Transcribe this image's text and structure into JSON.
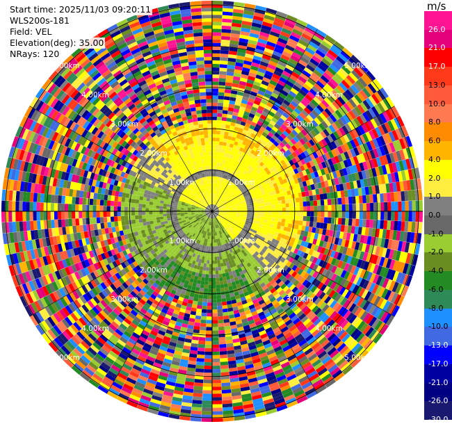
{
  "info": {
    "start_time": "Start time: 2025/11/03 09:20:11",
    "instrument": "WLS200s-181",
    "field": "Field: VEL",
    "elevation": "Elevation(deg): 35.00",
    "nrays": "NRays: 120"
  },
  "colorbar": {
    "unit": "m/s",
    "levels": [
      {
        "label": "26.0",
        "color": "#ff1493"
      },
      {
        "label": "21.0",
        "color": "#e4007a"
      },
      {
        "label": "17.0",
        "color": "#ff0000"
      },
      {
        "label": "13.0",
        "color": "#ff3a1a"
      },
      {
        "label": "10.0",
        "color": "#ff5a3a"
      },
      {
        "label": "8.0",
        "color": "#ff7a50"
      },
      {
        "label": "6.0",
        "color": "#ff8c00"
      },
      {
        "label": "4.0",
        "color": "#ffb400"
      },
      {
        "label": "2.0",
        "color": "#ffff00"
      },
      {
        "label": "1.0",
        "color": "#ffee40"
      },
      {
        "label": "0.0",
        "color": "#808080"
      },
      {
        "label": "-1.0",
        "color": "#696969"
      },
      {
        "label": "-2.0",
        "color": "#9acd32"
      },
      {
        "label": "-4.0",
        "color": "#6b8e23"
      },
      {
        "label": "-6.0",
        "color": "#228b22"
      },
      {
        "label": "-8.0",
        "color": "#2e8b57"
      },
      {
        "label": "-10.0",
        "color": "#1e90ff"
      },
      {
        "label": "-13.0",
        "color": "#4169e1"
      },
      {
        "label": "-17.0",
        "color": "#0000ff"
      },
      {
        "label": "-21.0",
        "color": "#0000a0"
      },
      {
        "label": "-26.0",
        "color": "#000080"
      },
      {
        "label": "-30.0",
        "color": "#191970"
      }
    ]
  },
  "chart_data": {
    "type": "heatmap",
    "projection": "polar (PPI scan)",
    "field": "VEL",
    "unit": "m/s",
    "nrays": 120,
    "elevation_deg": 35.0,
    "range_ring_labels": [
      "1.00km",
      "2.00km",
      "3.00km",
      "4.00km",
      "5.00km"
    ],
    "range_rings_km": [
      1,
      2,
      3,
      4,
      5
    ],
    "description_of_field": "Inner region (<~2 km) coherent: yellow (+1 to +4 m/s) on the north/east side and centre, olive/green (-2 to -6 m/s) on the west and south side, grey (near 0) around the inner ring; beyond ~2.2 km the field is noisy with all color classes present.",
    "spokes_deg": [
      0,
      30,
      60,
      90,
      120,
      150,
      180,
      210,
      240,
      270,
      300,
      330
    ],
    "color_levels": [
      26,
      21,
      17,
      13,
      10,
      8,
      6,
      4,
      2,
      1,
      0,
      -1,
      -2,
      -4,
      -6,
      -8,
      -10,
      -13,
      -17,
      -21,
      -26,
      -30
    ]
  }
}
